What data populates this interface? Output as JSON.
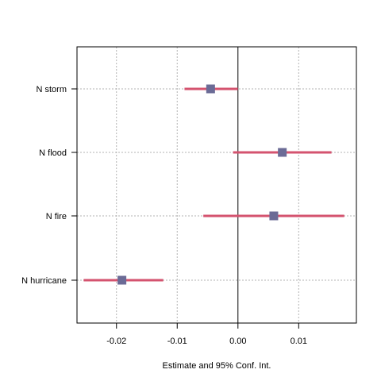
{
  "chart_data": {
    "type": "forest",
    "title": "",
    "xlabel": "Estimate and 95% Conf. Int.",
    "ylabel": "",
    "xlim": [
      -0.0265,
      0.0195
    ],
    "grid": true,
    "reference_line": 0,
    "categories": [
      "N storm",
      "N flood",
      "N fire",
      "N hurricane"
    ],
    "estimates": [
      -0.0045,
      0.0073,
      0.0059,
      -0.0191
    ],
    "ci_lower": [
      -0.0088,
      -0.0008,
      -0.0057,
      -0.0254
    ],
    "ci_upper": [
      0.0,
      0.0154,
      0.0175,
      -0.0123
    ],
    "x_ticks": [
      -0.02,
      -0.01,
      0.0,
      0.01
    ],
    "x_tick_labels": [
      "-0.02",
      "-0.01",
      "0.00",
      "0.01"
    ],
    "colors": {
      "ci_line": "#d4536f",
      "point": "#6b6b96",
      "grid": "#b3b3b3",
      "axis": "#000000"
    }
  }
}
